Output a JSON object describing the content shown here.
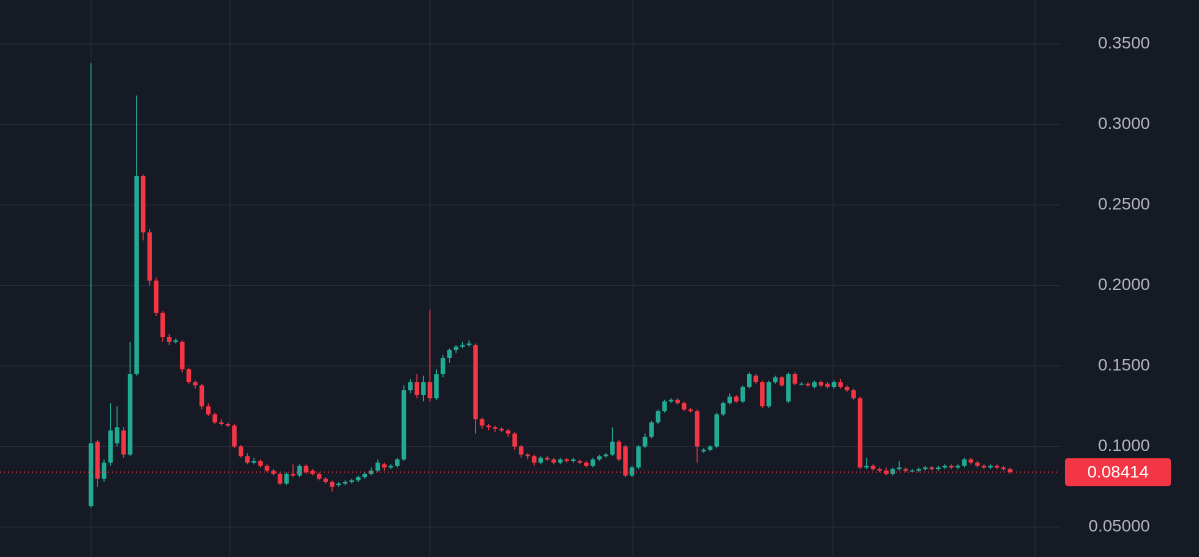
{
  "chart_data": {
    "type": "candlestick",
    "ylim": [
      0.0314,
      0.3773
    ],
    "yticks": [
      {
        "value": 0.35,
        "label": "0.3500"
      },
      {
        "value": 0.3,
        "label": "0.3000"
      },
      {
        "value": 0.25,
        "label": "0.2500"
      },
      {
        "value": 0.2,
        "label": "0.2000"
      },
      {
        "value": 0.15,
        "label": "0.1500"
      },
      {
        "value": 0.1,
        "label": "0.1000"
      },
      {
        "value": 0.05,
        "label": "0.05000"
      }
    ],
    "grid": true,
    "up_color": "#22ab94",
    "down_color": "#f23645",
    "last_price": 0.08414,
    "candles": [
      [
        0.063,
        0.338,
        0.062,
        0.102
      ],
      [
        0.103,
        0.104,
        0.075,
        0.08
      ],
      [
        0.08,
        0.092,
        0.078,
        0.09
      ],
      [
        0.09,
        0.127,
        0.088,
        0.11
      ],
      [
        0.102,
        0.125,
        0.1,
        0.112
      ],
      [
        0.11,
        0.112,
        0.093,
        0.095
      ],
      [
        0.095,
        0.165,
        0.094,
        0.145
      ],
      [
        0.145,
        0.318,
        0.144,
        0.268
      ],
      [
        0.268,
        0.269,
        0.228,
        0.233
      ],
      [
        0.233,
        0.235,
        0.2,
        0.203
      ],
      [
        0.203,
        0.205,
        0.181,
        0.183
      ],
      [
        0.183,
        0.184,
        0.165,
        0.168
      ],
      [
        0.168,
        0.17,
        0.163,
        0.165
      ],
      [
        0.165,
        0.167,
        0.164,
        0.166
      ],
      [
        0.165,
        0.166,
        0.146,
        0.148
      ],
      [
        0.148,
        0.149,
        0.139,
        0.14
      ],
      [
        0.14,
        0.141,
        0.136,
        0.138
      ],
      [
        0.138,
        0.139,
        0.123,
        0.125
      ],
      [
        0.125,
        0.127,
        0.119,
        0.12
      ],
      [
        0.12,
        0.121,
        0.114,
        0.115
      ],
      [
        0.115,
        0.117,
        0.113,
        0.114
      ],
      [
        0.114,
        0.115,
        0.112,
        0.113
      ],
      [
        0.113,
        0.114,
        0.099,
        0.1
      ],
      [
        0.1,
        0.101,
        0.093,
        0.094
      ],
      [
        0.094,
        0.096,
        0.089,
        0.09
      ],
      [
        0.09,
        0.093,
        0.089,
        0.091
      ],
      [
        0.091,
        0.092,
        0.087,
        0.088
      ],
      [
        0.088,
        0.089,
        0.084,
        0.085
      ],
      [
        0.085,
        0.086,
        0.082,
        0.083
      ],
      [
        0.083,
        0.084,
        0.076,
        0.077
      ],
      [
        0.077,
        0.084,
        0.076,
        0.083
      ],
      [
        0.083,
        0.089,
        0.081,
        0.082
      ],
      [
        0.082,
        0.089,
        0.081,
        0.088
      ],
      [
        0.088,
        0.089,
        0.083,
        0.084
      ],
      [
        0.085,
        0.086,
        0.082,
        0.083
      ],
      [
        0.083,
        0.084,
        0.079,
        0.08
      ],
      [
        0.08,
        0.081,
        0.077,
        0.078
      ],
      [
        0.078,
        0.079,
        0.072,
        0.075
      ],
      [
        0.076,
        0.078,
        0.075,
        0.077
      ],
      [
        0.077,
        0.079,
        0.076,
        0.078
      ],
      [
        0.078,
        0.08,
        0.077,
        0.079
      ],
      [
        0.079,
        0.082,
        0.078,
        0.081
      ],
      [
        0.081,
        0.084,
        0.08,
        0.083
      ],
      [
        0.083,
        0.087,
        0.082,
        0.085
      ],
      [
        0.085,
        0.092,
        0.084,
        0.09
      ],
      [
        0.089,
        0.09,
        0.085,
        0.087
      ],
      [
        0.087,
        0.089,
        0.086,
        0.088
      ],
      [
        0.088,
        0.093,
        0.087,
        0.092
      ],
      [
        0.092,
        0.138,
        0.091,
        0.135
      ],
      [
        0.135,
        0.142,
        0.133,
        0.14
      ],
      [
        0.14,
        0.145,
        0.13,
        0.132
      ],
      [
        0.132,
        0.144,
        0.128,
        0.14
      ],
      [
        0.14,
        0.185,
        0.128,
        0.13
      ],
      [
        0.13,
        0.148,
        0.129,
        0.145
      ],
      [
        0.145,
        0.157,
        0.143,
        0.155
      ],
      [
        0.155,
        0.161,
        0.152,
        0.16
      ],
      [
        0.16,
        0.163,
        0.158,
        0.162
      ],
      [
        0.162,
        0.165,
        0.161,
        0.163
      ],
      [
        0.163,
        0.166,
        0.162,
        0.164
      ],
      [
        0.163,
        0.164,
        0.108,
        0.117
      ],
      [
        0.117,
        0.118,
        0.111,
        0.113
      ],
      [
        0.113,
        0.114,
        0.11,
        0.112
      ],
      [
        0.112,
        0.113,
        0.109,
        0.111
      ],
      [
        0.111,
        0.112,
        0.109,
        0.11
      ],
      [
        0.11,
        0.111,
        0.106,
        0.108
      ],
      [
        0.108,
        0.109,
        0.098,
        0.1
      ],
      [
        0.1,
        0.101,
        0.093,
        0.095
      ],
      [
        0.095,
        0.096,
        0.092,
        0.094
      ],
      [
        0.094,
        0.095,
        0.088,
        0.09
      ],
      [
        0.09,
        0.094,
        0.089,
        0.093
      ],
      [
        0.093,
        0.094,
        0.091,
        0.092
      ],
      [
        0.092,
        0.093,
        0.089,
        0.09
      ],
      [
        0.09,
        0.093,
        0.089,
        0.092
      ],
      [
        0.092,
        0.093,
        0.09,
        0.091
      ],
      [
        0.091,
        0.093,
        0.09,
        0.092
      ],
      [
        0.091,
        0.092,
        0.089,
        0.09
      ],
      [
        0.09,
        0.091,
        0.087,
        0.088
      ],
      [
        0.088,
        0.093,
        0.087,
        0.092
      ],
      [
        0.092,
        0.095,
        0.091,
        0.094
      ],
      [
        0.094,
        0.096,
        0.093,
        0.095
      ],
      [
        0.095,
        0.112,
        0.094,
        0.103
      ],
      [
        0.103,
        0.104,
        0.091,
        0.092
      ],
      [
        0.1,
        0.101,
        0.081,
        0.082
      ],
      [
        0.082,
        0.088,
        0.081,
        0.087
      ],
      [
        0.087,
        0.101,
        0.086,
        0.1
      ],
      [
        0.1,
        0.108,
        0.099,
        0.106
      ],
      [
        0.106,
        0.116,
        0.105,
        0.115
      ],
      [
        0.115,
        0.123,
        0.114,
        0.122
      ],
      [
        0.122,
        0.129,
        0.121,
        0.128
      ],
      [
        0.128,
        0.13,
        0.127,
        0.129
      ],
      [
        0.129,
        0.13,
        0.126,
        0.127
      ],
      [
        0.127,
        0.128,
        0.122,
        0.123
      ],
      [
        0.123,
        0.124,
        0.121,
        0.122
      ],
      [
        0.122,
        0.123,
        0.09,
        0.1
      ],
      [
        0.097,
        0.099,
        0.096,
        0.098
      ],
      [
        0.098,
        0.101,
        0.097,
        0.1
      ],
      [
        0.1,
        0.121,
        0.099,
        0.12
      ],
      [
        0.12,
        0.128,
        0.119,
        0.127
      ],
      [
        0.127,
        0.133,
        0.126,
        0.131
      ],
      [
        0.131,
        0.132,
        0.127,
        0.128
      ],
      [
        0.128,
        0.138,
        0.127,
        0.137
      ],
      [
        0.137,
        0.146,
        0.136,
        0.145
      ],
      [
        0.144,
        0.145,
        0.139,
        0.14
      ],
      [
        0.14,
        0.141,
        0.124,
        0.125
      ],
      [
        0.125,
        0.141,
        0.124,
        0.14
      ],
      [
        0.14,
        0.144,
        0.139,
        0.143
      ],
      [
        0.143,
        0.144,
        0.137,
        0.138
      ],
      [
        0.128,
        0.146,
        0.127,
        0.145
      ],
      [
        0.145,
        0.146,
        0.138,
        0.139
      ],
      [
        0.139,
        0.14,
        0.138,
        0.139
      ],
      [
        0.139,
        0.14,
        0.137,
        0.138
      ],
      [
        0.137,
        0.141,
        0.136,
        0.14
      ],
      [
        0.14,
        0.141,
        0.137,
        0.138
      ],
      [
        0.139,
        0.14,
        0.136,
        0.137
      ],
      [
        0.137,
        0.141,
        0.136,
        0.14
      ],
      [
        0.14,
        0.142,
        0.136,
        0.137
      ],
      [
        0.137,
        0.138,
        0.134,
        0.135
      ],
      [
        0.135,
        0.136,
        0.129,
        0.13
      ],
      [
        0.13,
        0.131,
        0.086,
        0.087
      ],
      [
        0.087,
        0.093,
        0.086,
        0.088
      ],
      [
        0.088,
        0.089,
        0.085,
        0.086
      ],
      [
        0.086,
        0.087,
        0.084,
        0.085
      ],
      [
        0.085,
        0.087,
        0.082,
        0.083
      ],
      [
        0.083,
        0.087,
        0.082,
        0.086
      ],
      [
        0.086,
        0.091,
        0.085,
        0.087
      ],
      [
        0.086,
        0.087,
        0.084,
        0.085
      ],
      [
        0.085,
        0.086,
        0.084,
        0.085
      ],
      [
        0.085,
        0.087,
        0.084,
        0.086
      ],
      [
        0.086,
        0.088,
        0.085,
        0.087
      ],
      [
        0.087,
        0.088,
        0.085,
        0.086
      ],
      [
        0.086,
        0.088,
        0.085,
        0.087
      ],
      [
        0.087,
        0.089,
        0.086,
        0.088
      ],
      [
        0.088,
        0.089,
        0.086,
        0.087
      ],
      [
        0.087,
        0.089,
        0.086,
        0.088
      ],
      [
        0.088,
        0.093,
        0.087,
        0.092
      ],
      [
        0.092,
        0.093,
        0.089,
        0.09
      ],
      [
        0.09,
        0.091,
        0.087,
        0.088
      ],
      [
        0.088,
        0.089,
        0.086,
        0.087
      ],
      [
        0.087,
        0.089,
        0.086,
        0.088
      ],
      [
        0.088,
        0.089,
        0.086,
        0.087
      ],
      [
        0.087,
        0.088,
        0.085,
        0.086
      ],
      [
        0.086,
        0.087,
        0.083,
        0.08414
      ]
    ]
  }
}
